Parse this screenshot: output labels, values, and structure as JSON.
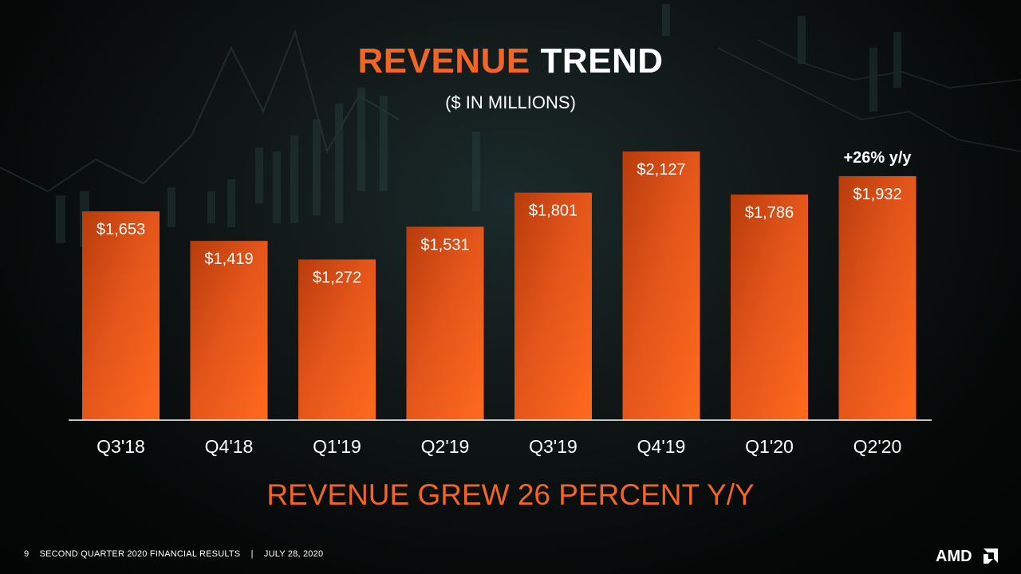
{
  "header": {
    "title_accent": "REVENUE",
    "title_plain": "TREND",
    "subtitle": "($ IN MILLIONS)"
  },
  "chart_data": {
    "type": "bar",
    "categories": [
      "Q3'18",
      "Q4'18",
      "Q1'19",
      "Q2'19",
      "Q3'19",
      "Q4'19",
      "Q1'20",
      "Q2'20"
    ],
    "values": [
      1653,
      1419,
      1272,
      1531,
      1801,
      2127,
      1786,
      1932
    ],
    "value_labels": [
      "$1,653",
      "$1,419",
      "$1,272",
      "$1,531",
      "$1,801",
      "$2,127",
      "$1,786",
      "$1,932"
    ],
    "annotation": "+26% y/y",
    "title": "REVENUE TREND",
    "ylabel": "",
    "xlabel": "",
    "grid": false
  },
  "headline": "REVENUE GREW 26 PERCENT Y/Y",
  "footer": {
    "page_number": "9",
    "report_label": "SECOND QUARTER 2020 FINANCIAL RESULTS",
    "separator": "|",
    "date": "JULY 28, 2020"
  },
  "logo": {
    "text": "AMD",
    "icon": "amd-arrow-icon"
  },
  "colors": {
    "accent": "#f26522",
    "background": "#0b1010"
  }
}
